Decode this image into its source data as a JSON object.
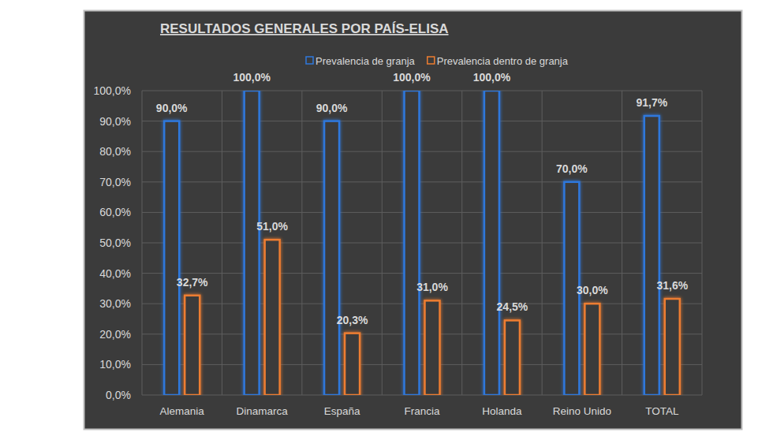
{
  "chart_data": {
    "type": "bar",
    "title": "RESULTADOS GENERALES POR PAÍS-ELISA",
    "categories": [
      "Alemania",
      "Dinamarca",
      "España",
      "Francia",
      "Holanda",
      "Reino Unido",
      "TOTAL"
    ],
    "series": [
      {
        "name": "Prevalencia de granja",
        "color": "#2f78dc",
        "values": [
          90,
          100,
          90,
          100,
          100,
          70,
          91.7
        ],
        "value_labels": [
          "90,0%",
          "100,0%",
          "90,0%",
          "100,0%",
          "100,0%",
          "70,0%",
          "91,7%"
        ]
      },
      {
        "name": "Prevalencia dentro de granja",
        "color": "#ed7d31",
        "values": [
          32.7,
          51,
          20.3,
          31,
          24.5,
          30,
          31.6
        ],
        "value_labels": [
          "32,7%",
          "51,0%",
          "20,3%",
          "31,0%",
          "24,5%",
          "30,0%",
          "31,6%"
        ]
      }
    ],
    "ylim": [
      0,
      100
    ],
    "yticks": [
      {
        "value": 0,
        "label": "0,0%"
      },
      {
        "value": 10,
        "label": "10,0%"
      },
      {
        "value": 20,
        "label": "20,0%"
      },
      {
        "value": 30,
        "label": "30,0%"
      },
      {
        "value": 40,
        "label": "40,0%"
      },
      {
        "value": 50,
        "label": "50,0%"
      },
      {
        "value": 60,
        "label": "60,0%"
      },
      {
        "value": 70,
        "label": "70,0%"
      },
      {
        "value": 80,
        "label": "80,0%"
      },
      {
        "value": 90,
        "label": "90,0%"
      },
      {
        "value": 100,
        "label": "100,0%"
      }
    ],
    "grid": true,
    "legend": "top",
    "data_labels": true
  }
}
